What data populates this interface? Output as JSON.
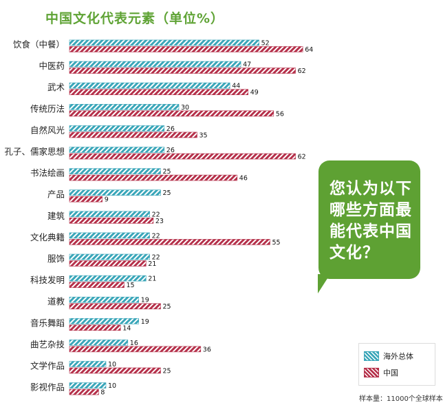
{
  "title": "中国文化代表元素（单位%）",
  "callout": "您认为以下哪些方面最能代表中国文化？",
  "sample_note": "样本量：11000个全球样本",
  "colors": {
    "overseas": "#3aa6b9",
    "china": "#b5304a",
    "title": "#5fa335",
    "callout_bg": "#5ea133"
  },
  "chart_data": {
    "type": "bar",
    "orientation": "horizontal",
    "categories": [
      "饮食（中餐）",
      "中医药",
      "武术",
      "传统历法",
      "自然风光",
      "孔子、儒家思想",
      "书法绘画",
      "产品",
      "建筑",
      "文化典籍",
      "服饰",
      "科技发明",
      "道教",
      "音乐舞蹈",
      "曲艺杂技",
      "文学作品",
      "影视作品"
    ],
    "series": [
      {
        "name": "海外总体",
        "values": [
          52,
          47,
          44,
          30,
          26,
          26,
          25,
          25,
          22,
          22,
          22,
          21,
          19,
          19,
          16,
          10,
          10
        ]
      },
      {
        "name": "中国",
        "values": [
          64,
          62,
          49,
          56,
          35,
          62,
          46,
          9,
          23,
          55,
          21,
          15,
          25,
          14,
          36,
          25,
          8
        ]
      }
    ],
    "title": "中国文化代表元素（单位%）",
    "legend": "bottom-right",
    "grid": false
  }
}
